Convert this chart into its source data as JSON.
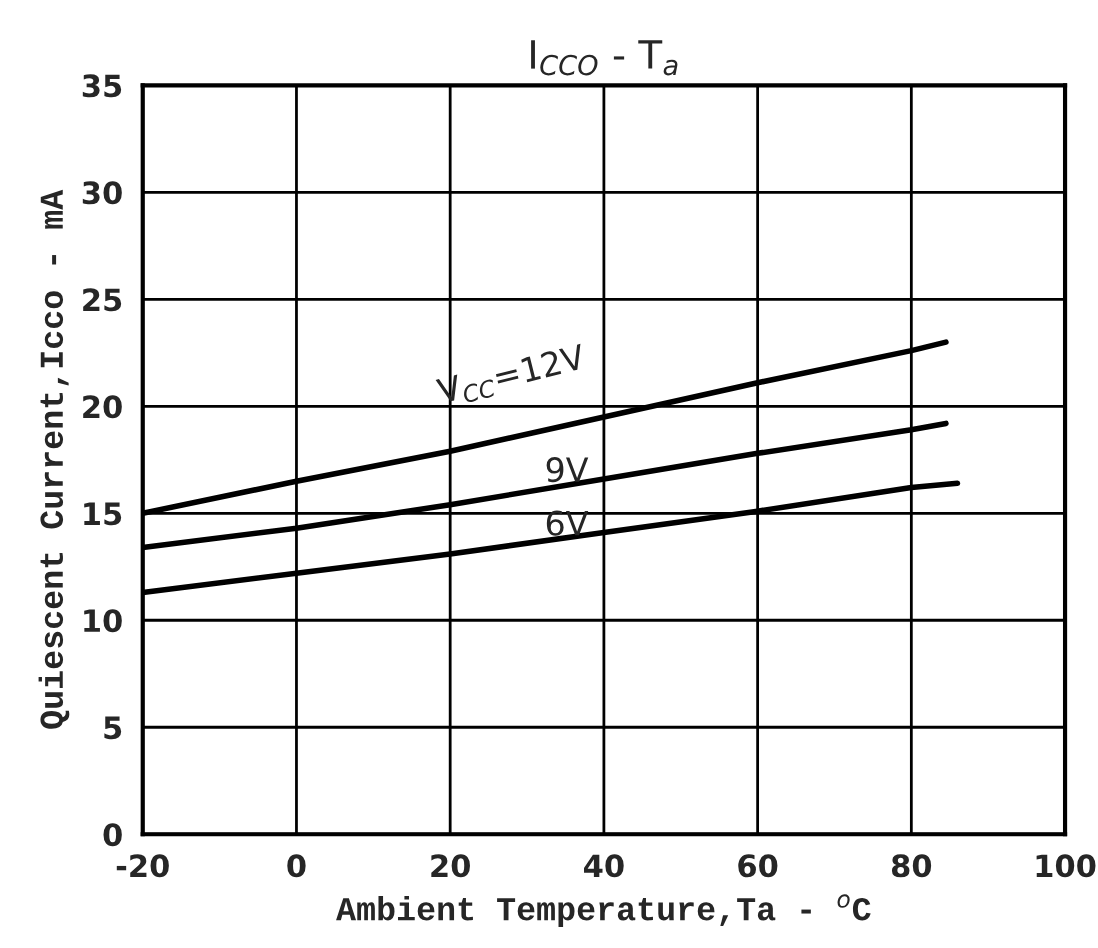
{
  "chart_data": {
    "type": "line",
    "title": "I$_{CCO}$ - T$_{a}$",
    "xlabel": "Ambient Temperature,Ta - $^{o}$C",
    "ylabel": "Quiescent Current,Icco - mA",
    "x": [
      -20,
      0,
      20,
      40,
      60,
      80,
      84.5
    ],
    "series": [
      {
        "name": "V$_{CC}$=12V",
        "color": "#000000",
        "values": [
          15.0,
          16.5,
          17.9,
          19.5,
          21.1,
          22.6,
          23.0
        ]
      },
      {
        "name": "9V",
        "color": "#000000",
        "values": [
          13.4,
          14.3,
          15.4,
          16.6,
          17.8,
          18.9,
          19.2
        ]
      },
      {
        "name": "6V",
        "color": "#000000",
        "x": [
          -20,
          0,
          20,
          40,
          60,
          80,
          86
        ],
        "values": [
          11.3,
          12.2,
          13.1,
          14.1,
          15.1,
          16.2,
          16.4
        ]
      }
    ],
    "xlim": [
      -20,
      100
    ],
    "xticks": [
      -20,
      0,
      20,
      40,
      60,
      80,
      100
    ],
    "ylim": [
      0,
      35
    ],
    "yticks": [
      0,
      5,
      10,
      15,
      20,
      25,
      30,
      35
    ],
    "grid": true,
    "legend": false,
    "marker": "none",
    "line_style": "solid"
  }
}
